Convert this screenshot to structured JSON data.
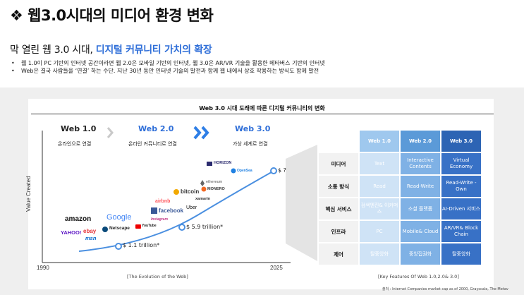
{
  "header": {
    "title": "❖ 웹3.0시대의 미디어 환경 변화",
    "subtitle_prefix": "막 열린 웹 3.0 시대, ",
    "subtitle_highlight": "디지털 커뮤니티 가치의 확장"
  },
  "bullets": [
    "웹 1.0이 PC 기반의 인터넷 공간이라면 웹 2.0은 모바일 기반의 인터넷, 웹 3.0은 AR/VR 기술을 활용한 메타버스 기반의 인터넷",
    "Web은 결국 사람들을 ‘연결’ 하는 수단. 지난 30년 동안 인터넷 기술의 발전과 함께 웹 내에서 상호 작용하는 방식도 함께 발전"
  ],
  "figure": {
    "title": "Web 3.0 시대 도래에 따른 디지털 커뮤니티의 변화",
    "eras": [
      {
        "name": "Web 1.0",
        "desc": "온라인으로 연결"
      },
      {
        "name": "Web 2.0",
        "desc": "온라인 커뮤니티로 연결"
      },
      {
        "name": "Web 3.0",
        "desc": "가상 세계로 연결"
      }
    ],
    "y_axis_label": "Value Created",
    "x_start": "1990",
    "x_end": "2025",
    "points": [
      {
        "label": "$ 1.1 trillion*"
      },
      {
        "label": "$ 5.9 trillion*"
      },
      {
        "label": "$ ?"
      }
    ],
    "logos": [
      "amazon",
      "YAHOO!",
      "ebay",
      "msn",
      "Google",
      "Netscape",
      "YouTube",
      "facebook",
      "Instagram",
      "airbnb",
      "bitcoin",
      "Uber",
      "ethereum",
      "MONERO",
      "xamarin",
      "HORIZON",
      "OpenSea"
    ],
    "caption_left": "[The Evolution of the Web]",
    "caption_right": "[Key Features Of Web 1.0,2.0& 3.0]",
    "source": "출처 : Internet Companies market cap as of 2000, Grayscale, The Metav"
  },
  "table": {
    "columns": [
      "Web 1.0",
      "Web 2.0",
      "Web 3.0"
    ],
    "rows": [
      {
        "head": "미디어",
        "cells": [
          "Text",
          "Interactive Contents",
          "Virtual Economy"
        ]
      },
      {
        "head": "소통 방식",
        "cells": [
          "Read",
          "Read-Write",
          "Read-Write -Own"
        ]
      },
      {
        "head": "핵심 서비스",
        "cells": [
          "검색엔진& 이커머스",
          "소셜 플랫폼",
          "AI-Driven 서비스"
        ]
      },
      {
        "head": "인프라",
        "cells": [
          "PC",
          "Mobile& Cloud",
          "AR/VR& Block Chain"
        ]
      },
      {
        "head": "제어",
        "cells": [
          "탈중앙화",
          "중앙집권화",
          "탈중앙화"
        ]
      }
    ]
  },
  "colors": {
    "accent": "#2e6ed8",
    "web1": "#9fc8ee",
    "web2": "#5b9ad8",
    "web3": "#2d64b4"
  }
}
